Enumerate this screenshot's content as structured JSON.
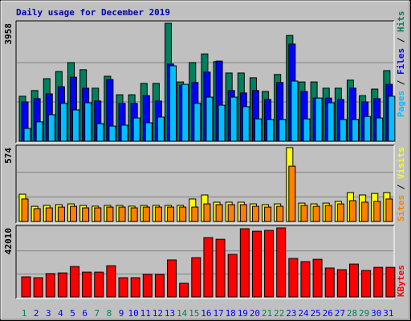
{
  "chart_data": [
    {
      "type": "bar",
      "title": "Daily usage for December 2019",
      "legend_separator": " / ",
      "grid": true,
      "ylim": [
        0,
        3958
      ],
      "yticks": [
        3958
      ],
      "series": [
        {
          "name": "Hits",
          "color": "#00805c",
          "values": [
            1510,
            1700,
            2100,
            2340,
            2640,
            2400,
            1780,
            2180,
            1560,
            1560,
            1940,
            1940,
            3958,
            1990,
            2640,
            2930,
            2670,
            2290,
            2290,
            2130,
            1670,
            2240,
            3550,
            1990,
            1990,
            1780,
            1780,
            2050,
            1530,
            1750,
            2370
          ]
        },
        {
          "name": "Files",
          "color": "#0000ff",
          "values": [
            1320,
            1430,
            1590,
            1830,
            2150,
            1780,
            1350,
            2070,
            1270,
            1270,
            1530,
            1350,
            2590,
            1880,
            1970,
            2320,
            2690,
            1700,
            1620,
            1700,
            1400,
            1970,
            3260,
            1670,
            1450,
            1450,
            1400,
            1780,
            1320,
            1430,
            1910
          ]
        },
        {
          "name": "Pages",
          "color": "#00c0ff",
          "values": [
            430,
            650,
            890,
            1270,
            1050,
            1290,
            590,
            510,
            540,
            780,
            620,
            810,
            2530,
            1910,
            1270,
            1480,
            1210,
            1480,
            1160,
            750,
            730,
            730,
            2020,
            750,
            1450,
            1290,
            730,
            730,
            830,
            780,
            1510
          ]
        }
      ]
    },
    {
      "type": "bar",
      "legend_separator": " / ",
      "grid": true,
      "ylim": [
        0,
        574
      ],
      "yticks": [
        574
      ],
      "series": [
        {
          "name": "Visits",
          "color": "#ffff00",
          "values": [
            212,
            118,
            125,
            131,
            137,
            125,
            119,
            125,
            125,
            119,
            125,
            125,
            125,
            125,
            175,
            206,
            150,
            150,
            150,
            137,
            131,
            137,
            574,
            143,
            137,
            143,
            156,
            225,
            206,
            218,
            225
          ]
        },
        {
          "name": "Sites",
          "color": "#ff8000",
          "values": [
            175,
            100,
            106,
            112,
            118,
            106,
            106,
            112,
            112,
            106,
            112,
            112,
            112,
            112,
            112,
            137,
            131,
            131,
            131,
            118,
            112,
            118,
            430,
            125,
            118,
            125,
            137,
            162,
            150,
            156,
            175
          ]
        }
      ]
    },
    {
      "type": "bar",
      "grid": true,
      "ylim": [
        0,
        42010
      ],
      "yticks": [
        42010
      ],
      "categories": [
        "1",
        "2",
        "3",
        "4",
        "5",
        "6",
        "7",
        "8",
        "9",
        "10",
        "11",
        "12",
        "13",
        "14",
        "15",
        "16",
        "17",
        "18",
        "19",
        "20",
        "21",
        "22",
        "23",
        "24",
        "25",
        "26",
        "27",
        "28",
        "29",
        "30",
        "31"
      ],
      "category_colors": [
        "#00805c",
        "#0000ff",
        "#0000ff",
        "#0000ff",
        "#0000ff",
        "#0000ff",
        "#00805c",
        "#00805c",
        "#0000ff",
        "#0000ff",
        "#0000ff",
        "#0000ff",
        "#0000ff",
        "#00805c",
        "#00805c",
        "#0000ff",
        "#0000ff",
        "#0000ff",
        "#0000ff",
        "#0000ff",
        "#00805c",
        "#00805c",
        "#0000ff",
        "#0000ff",
        "#0000ff",
        "#0000ff",
        "#0000ff",
        "#00805c",
        "#00805c",
        "#0000ff",
        "#0000ff"
      ],
      "series": [
        {
          "name": "KBytes",
          "color": "#ff0000",
          "values": [
            12200,
            11700,
            14200,
            14600,
            18500,
            15100,
            15100,
            19000,
            11700,
            11700,
            13700,
            13700,
            22500,
            8300,
            23900,
            36100,
            35100,
            25900,
            41500,
            40000,
            40500,
            42010,
            23400,
            21500,
            22900,
            17600,
            16600,
            20000,
            16100,
            18000,
            18000
          ]
        }
      ]
    }
  ]
}
